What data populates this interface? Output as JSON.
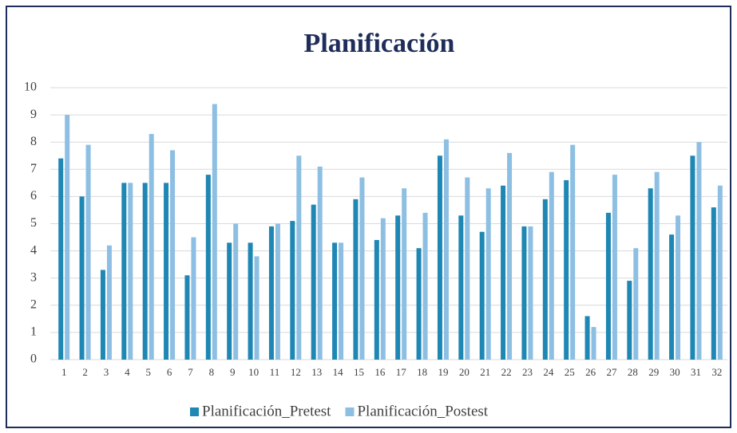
{
  "chart_data": {
    "type": "bar",
    "title": "Planificación",
    "categories": [
      "1",
      "2",
      "3",
      "4",
      "5",
      "6",
      "7",
      "8",
      "9",
      "10",
      "11",
      "12",
      "13",
      "14",
      "15",
      "16",
      "17",
      "18",
      "19",
      "20",
      "21",
      "22",
      "23",
      "24",
      "25",
      "26",
      "27",
      "28",
      "29",
      "30",
      "31",
      "32"
    ],
    "series": [
      {
        "name": "Planificación_Pretest",
        "color": "#1f87b3",
        "values": [
          7.4,
          6.0,
          3.3,
          6.5,
          6.5,
          6.5,
          3.1,
          6.8,
          4.3,
          4.3,
          4.9,
          5.1,
          5.7,
          4.3,
          5.9,
          4.4,
          5.3,
          4.1,
          7.5,
          5.3,
          4.7,
          6.4,
          4.9,
          5.9,
          6.6,
          1.6,
          5.4,
          2.9,
          6.3,
          4.6,
          7.5,
          5.6
        ]
      },
      {
        "name": "Planificación_Postest",
        "color": "#8dbfe2",
        "values": [
          9.0,
          7.9,
          4.2,
          6.5,
          8.3,
          7.7,
          4.5,
          9.4,
          5.0,
          3.8,
          5.0,
          7.5,
          7.1,
          4.3,
          6.7,
          5.2,
          6.3,
          5.4,
          8.1,
          6.7,
          6.3,
          7.6,
          4.9,
          6.9,
          7.9,
          1.2,
          6.8,
          4.1,
          6.9,
          5.3,
          8.0,
          6.4
        ]
      }
    ],
    "ylim": [
      0,
      10
    ],
    "yticks": [
      0,
      1,
      2,
      3,
      4,
      5,
      6,
      7,
      8,
      9,
      10
    ],
    "grid": true,
    "legend": "bottom"
  }
}
